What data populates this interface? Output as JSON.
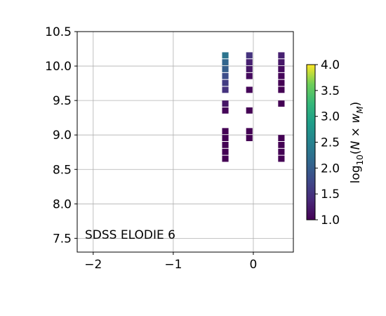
{
  "chart_data": {
    "type": "heatmap",
    "title": "",
    "xlabel": "",
    "ylabel": "",
    "xlim": [
      -2.2,
      0.5
    ],
    "ylim": [
      7.3,
      10.5
    ],
    "x_ticks": [
      -2,
      -1,
      0
    ],
    "x_tick_labels": [
      "−2",
      "−1",
      "0"
    ],
    "y_ticks": [
      7.5,
      8.0,
      8.5,
      9.0,
      9.5,
      10.0,
      10.5
    ],
    "y_tick_labels": [
      "7.5",
      "8.0",
      "8.5",
      "9.0",
      "9.5",
      "10.0",
      "10.5"
    ],
    "grid": true,
    "annotation": "SDSS ELODIE 6",
    "annotation_position": "bottom-left",
    "colormap": "viridis",
    "colorbar": {
      "label": "log10(N × w_M)",
      "range": [
        1.0,
        4.0
      ],
      "ticks": [
        1.0,
        1.5,
        2.0,
        2.5,
        3.0,
        3.5,
        4.0
      ],
      "tick_labels": [
        "1.0",
        "1.5",
        "2.0",
        "2.5",
        "3.0",
        "3.5",
        "4.0"
      ]
    },
    "cell_width": 0.08,
    "cell_height": 0.1,
    "cells": [
      {
        "x": -0.35,
        "y": 10.15,
        "v": 2.3
      },
      {
        "x": -0.35,
        "y": 10.05,
        "v": 2.1
      },
      {
        "x": -0.35,
        "y": 9.95,
        "v": 2.0
      },
      {
        "x": -0.35,
        "y": 9.85,
        "v": 1.8
      },
      {
        "x": -0.35,
        "y": 9.75,
        "v": 1.6
      },
      {
        "x": -0.35,
        "y": 9.65,
        "v": 1.5
      },
      {
        "x": -0.35,
        "y": 9.45,
        "v": 1.2
      },
      {
        "x": -0.35,
        "y": 9.35,
        "v": 1.05
      },
      {
        "x": -0.35,
        "y": 9.05,
        "v": 1.0
      },
      {
        "x": -0.35,
        "y": 8.95,
        "v": 1.0
      },
      {
        "x": -0.35,
        "y": 8.85,
        "v": 1.0
      },
      {
        "x": -0.35,
        "y": 8.75,
        "v": 1.0
      },
      {
        "x": -0.35,
        "y": 8.65,
        "v": 1.0
      },
      {
        "x": -0.05,
        "y": 10.15,
        "v": 1.5
      },
      {
        "x": -0.05,
        "y": 10.05,
        "v": 1.3
      },
      {
        "x": -0.05,
        "y": 9.95,
        "v": 1.2
      },
      {
        "x": -0.05,
        "y": 9.85,
        "v": 1.1
      },
      {
        "x": -0.05,
        "y": 9.65,
        "v": 1.05
      },
      {
        "x": -0.05,
        "y": 9.35,
        "v": 1.0
      },
      {
        "x": -0.05,
        "y": 9.05,
        "v": 1.0
      },
      {
        "x": -0.05,
        "y": 8.95,
        "v": 1.0
      },
      {
        "x": 0.35,
        "y": 10.15,
        "v": 1.3
      },
      {
        "x": 0.35,
        "y": 10.05,
        "v": 1.2
      },
      {
        "x": 0.35,
        "y": 9.95,
        "v": 1.1
      },
      {
        "x": 0.35,
        "y": 9.85,
        "v": 1.05
      },
      {
        "x": 0.35,
        "y": 9.75,
        "v": 1.0
      },
      {
        "x": 0.35,
        "y": 9.65,
        "v": 1.0
      },
      {
        "x": 0.35,
        "y": 9.45,
        "v": 1.0
      },
      {
        "x": 0.35,
        "y": 8.95,
        "v": 1.0
      },
      {
        "x": 0.35,
        "y": 8.85,
        "v": 1.0
      },
      {
        "x": 0.35,
        "y": 8.75,
        "v": 1.0
      },
      {
        "x": 0.35,
        "y": 8.65,
        "v": 1.0
      }
    ]
  }
}
